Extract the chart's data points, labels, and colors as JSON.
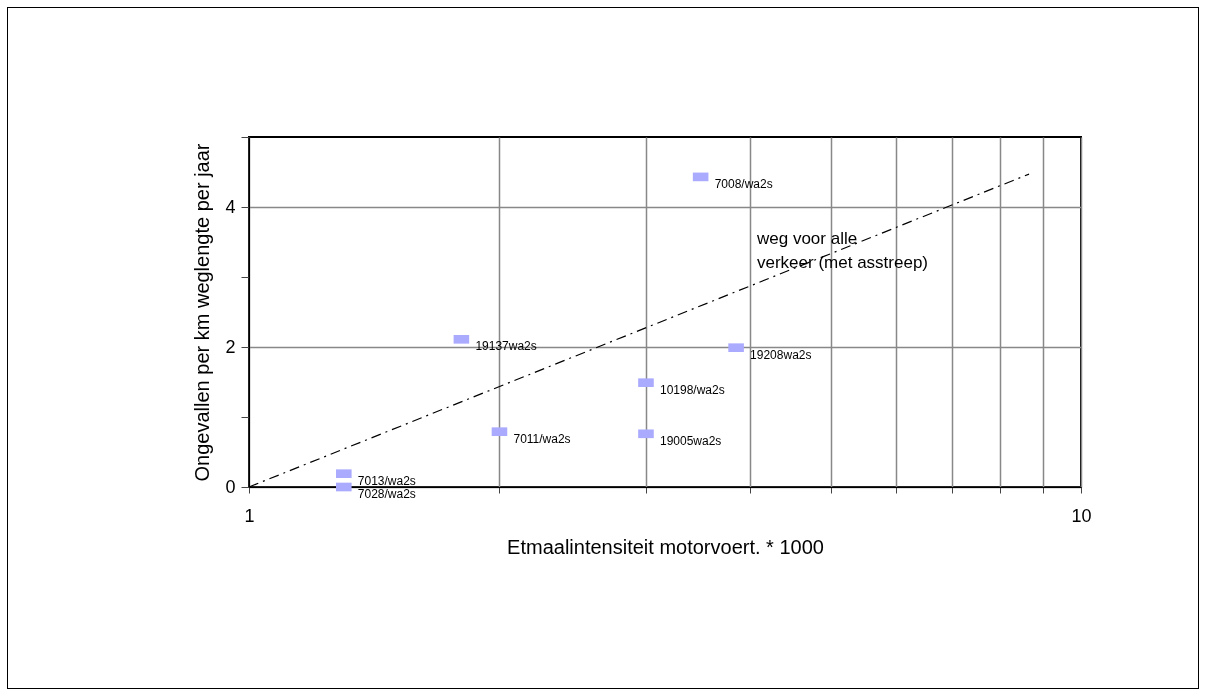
{
  "chart_data": {
    "type": "scatter",
    "xlabel": "Etmaalintensiteit motorvoert. * 1000",
    "ylabel": "Ongevallen per km weglengte per jaar",
    "log": "x",
    "xlim": [
      1,
      10
    ],
    "xticks": [
      1,
      {
        "value": 2,
        "label": null
      },
      {
        "value": 3,
        "label": null
      },
      {
        "value": 4,
        "label": null
      },
      {
        "value": 5,
        "label": null
      },
      {
        "value": 6,
        "label": null
      },
      {
        "value": 7,
        "label": null
      },
      {
        "value": 8,
        "label": null
      },
      {
        "value": 9,
        "label": null
      },
      10
    ],
    "ylim": [
      0,
      5
    ],
    "yticks": [
      0,
      {
        "value": 1,
        "label": null
      },
      2,
      {
        "value": 3,
        "label": null
      },
      4,
      {
        "value": 5,
        "label": null
      }
    ],
    "grid": true,
    "series": [
      {
        "marker": "square",
        "color": "#aaaaff",
        "x": [
          1.3,
          1.3,
          1.8,
          2.0,
          3.0,
          3.0,
          3.49,
          3.85
        ],
        "values": [
          0.19,
          0.0,
          2.11,
          0.79,
          1.49,
          0.76,
          4.43,
          1.99
        ]
      },
      {
        "type": "line",
        "marker": "none",
        "color": "#000000",
        "line_style": "dashed",
        "x": [
          1,
          8.66
        ],
        "values": [
          0,
          4.47
        ]
      }
    ],
    "annotations": [
      {
        "text": "7013/wa2s",
        "x": 1.3,
        "y": 0.19
      },
      {
        "text": "7028/wa2s",
        "x": 1.3,
        "y": 0.0
      },
      {
        "text": "19137wa2s",
        "x": 1.8,
        "y": 2.11
      },
      {
        "text": "7011/wa2s",
        "x": 2.0,
        "y": 0.79
      },
      {
        "text": "10198/wa2s",
        "x": 3.0,
        "y": 1.49
      },
      {
        "text": "19005wa2s",
        "x": 3.0,
        "y": 0.76
      },
      {
        "text": "7008/wa2s",
        "x": 3.49,
        "y": 4.43
      },
      {
        "text": "19208wa2s",
        "x": 3.85,
        "y": 1.99
      },
      "weg voor alle\nverkeer (met asstreep)"
    ]
  }
}
